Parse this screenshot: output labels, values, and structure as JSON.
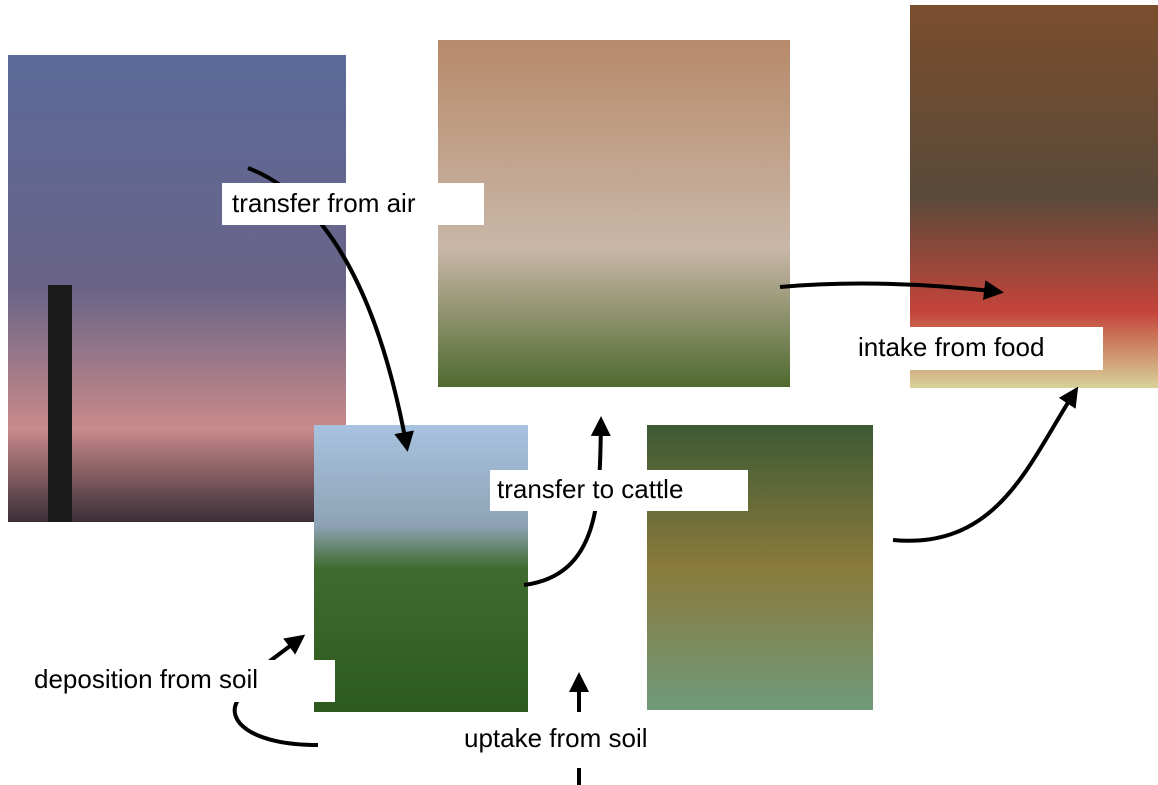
{
  "labels": {
    "transfer_air": "transfer from air",
    "intake_food": "intake from food",
    "transfer_cattle": "transfer to cattle",
    "deposition_soil": "deposition from soil",
    "uptake_soil": "uptake from soil"
  }
}
